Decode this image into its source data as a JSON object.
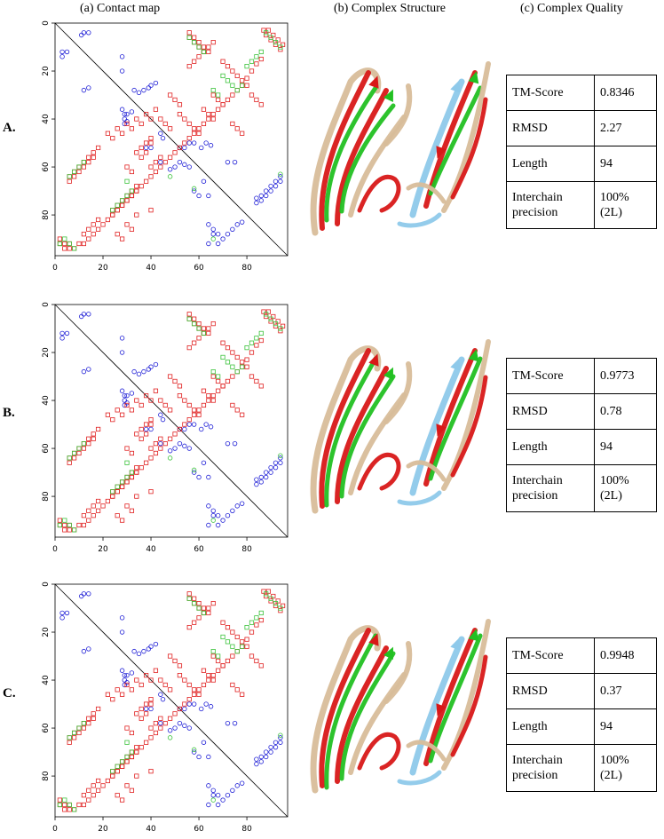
{
  "columns": {
    "a": "(a)  Contact map",
    "b": "(b) Complex Structure",
    "c": "(c) Complex Quality"
  },
  "rows": [
    {
      "label": "A.",
      "metrics": [
        {
          "name": "TM-Score",
          "value": "0.8346"
        },
        {
          "name": "RMSD",
          "value": "2.27"
        },
        {
          "name": "Length",
          "value": "94"
        },
        {
          "name": "Interchain precision",
          "value": "100% (2L)"
        }
      ]
    },
    {
      "label": "B.",
      "metrics": [
        {
          "name": "TM-Score",
          "value": "0.9773"
        },
        {
          "name": "RMSD",
          "value": "0.78"
        },
        {
          "name": "Length",
          "value": "94"
        },
        {
          "name": "Interchain precision",
          "value": "100% (2L)"
        }
      ]
    },
    {
      "label": "C.",
      "metrics": [
        {
          "name": "TM-Score",
          "value": "0.9948"
        },
        {
          "name": "RMSD",
          "value": "0.37"
        },
        {
          "name": "Length",
          "value": "94"
        },
        {
          "name": "Interchain precision",
          "value": "100% (2L)"
        }
      ]
    }
  ],
  "colors": {
    "intrachain": "#1f1fd6",
    "interchain_true": "#e02020",
    "interchain_pred": "#3cc33c",
    "struct_red": "#d81818",
    "struct_green": "#22c022",
    "struct_tan": "#d8bd9a",
    "struct_blue": "#8ec9ea"
  },
  "chart_data": [
    {
      "type": "scatter",
      "panel": "A",
      "xlim": [
        0,
        97
      ],
      "ylim": [
        97,
        0
      ],
      "x_ticks": [
        0,
        20,
        40,
        60,
        80
      ],
      "y_ticks": [
        0,
        20,
        40,
        60,
        80
      ],
      "upper_circles": [
        [
          12,
          4
        ],
        [
          14,
          4
        ],
        [
          11,
          5
        ],
        [
          3,
          14
        ],
        [
          5,
          12
        ],
        [
          3,
          12
        ],
        [
          12,
          28
        ],
        [
          14,
          27
        ],
        [
          28,
          14
        ],
        [
          28,
          20
        ],
        [
          33,
          28
        ],
        [
          35,
          29
        ],
        [
          37,
          28
        ],
        [
          39,
          27
        ],
        [
          40,
          26
        ],
        [
          42,
          25
        ],
        [
          29,
          38
        ],
        [
          29,
          40
        ],
        [
          29,
          42
        ],
        [
          28,
          36
        ],
        [
          30,
          38
        ],
        [
          30,
          41
        ],
        [
          32,
          37
        ],
        [
          44,
          46
        ],
        [
          45,
          48
        ],
        [
          52,
          52
        ],
        [
          54,
          52
        ],
        [
          56,
          50
        ],
        [
          58,
          50
        ],
        [
          61,
          52
        ],
        [
          63,
          50
        ],
        [
          65,
          51
        ],
        [
          48,
          61
        ],
        [
          50,
          60
        ],
        [
          52,
          58
        ],
        [
          54,
          59
        ],
        [
          56,
          60
        ],
        [
          38,
          52
        ],
        [
          40,
          52
        ],
        [
          44,
          58
        ],
        [
          72,
          58
        ],
        [
          75,
          58
        ],
        [
          58,
          70
        ],
        [
          60,
          72
        ],
        [
          64,
          84
        ],
        [
          66,
          86
        ],
        [
          68,
          88
        ],
        [
          70,
          90
        ],
        [
          72,
          88
        ],
        [
          74,
          86
        ],
        [
          76,
          84
        ],
        [
          78,
          83
        ],
        [
          62,
          66
        ],
        [
          64,
          72
        ],
        [
          66,
          88
        ],
        [
          68,
          92
        ],
        [
          64,
          92
        ],
        [
          84,
          73
        ],
        [
          86,
          72
        ],
        [
          88,
          70
        ],
        [
          90,
          68
        ],
        [
          92,
          66
        ],
        [
          94,
          64
        ],
        [
          84,
          75
        ],
        [
          86,
          74
        ],
        [
          88,
          72
        ],
        [
          90,
          70
        ],
        [
          92,
          68
        ],
        [
          94,
          66
        ]
      ],
      "upper_green_circles": [
        [
          48,
          64
        ],
        [
          94,
          63
        ],
        [
          66,
          90
        ],
        [
          58,
          69
        ]
      ],
      "upper_squares": [
        [
          56,
          4
        ],
        [
          58,
          6
        ],
        [
          60,
          8
        ],
        [
          62,
          10
        ],
        [
          64,
          12
        ],
        [
          56,
          6
        ],
        [
          58,
          8
        ],
        [
          60,
          10
        ],
        [
          62,
          12
        ],
        [
          56,
          18
        ],
        [
          58,
          16
        ],
        [
          60,
          14
        ],
        [
          62,
          12
        ],
        [
          64,
          10
        ],
        [
          66,
          8
        ],
        [
          87,
          3
        ],
        [
          88,
          5
        ],
        [
          90,
          7
        ],
        [
          92,
          9
        ],
        [
          94,
          11
        ],
        [
          89,
          3
        ],
        [
          91,
          5
        ],
        [
          93,
          7
        ],
        [
          95,
          9
        ],
        [
          86,
          15
        ],
        [
          84,
          17
        ],
        [
          82,
          20
        ],
        [
          80,
          23
        ],
        [
          78,
          26
        ],
        [
          76,
          28
        ],
        [
          74,
          30
        ],
        [
          72,
          32
        ],
        [
          70,
          34
        ],
        [
          68,
          36
        ],
        [
          66,
          38
        ],
        [
          64,
          40
        ],
        [
          62,
          42
        ],
        [
          60,
          44
        ],
        [
          58,
          46
        ],
        [
          56,
          48
        ],
        [
          54,
          50
        ],
        [
          52,
          52
        ],
        [
          50,
          54
        ],
        [
          48,
          56
        ],
        [
          46,
          58
        ],
        [
          44,
          60
        ],
        [
          42,
          62
        ],
        [
          40,
          64
        ],
        [
          38,
          66
        ],
        [
          36,
          68
        ],
        [
          34,
          70
        ],
        [
          32,
          72
        ],
        [
          30,
          74
        ],
        [
          28,
          76
        ],
        [
          26,
          78
        ],
        [
          24,
          80
        ],
        [
          22,
          82
        ],
        [
          20,
          84
        ],
        [
          18,
          86
        ],
        [
          16,
          88
        ],
        [
          14,
          90
        ],
        [
          12,
          92
        ],
        [
          70,
          16
        ],
        [
          72,
          18
        ],
        [
          74,
          20
        ],
        [
          76,
          22
        ],
        [
          78,
          24
        ],
        [
          80,
          26
        ],
        [
          66,
          30
        ],
        [
          68,
          32
        ],
        [
          70,
          34
        ],
        [
          82,
          30
        ],
        [
          84,
          32
        ],
        [
          86,
          34
        ],
        [
          74,
          42
        ],
        [
          76,
          44
        ],
        [
          78,
          46
        ],
        [
          62,
          36
        ],
        [
          64,
          38
        ],
        [
          66,
          40
        ],
        [
          52,
          38
        ],
        [
          54,
          40
        ],
        [
          56,
          42
        ],
        [
          58,
          44
        ],
        [
          60,
          46
        ],
        [
          48,
          30
        ],
        [
          50,
          32
        ],
        [
          52,
          34
        ],
        [
          44,
          40
        ],
        [
          46,
          42
        ],
        [
          48,
          44
        ],
        [
          40,
          48
        ],
        [
          38,
          50
        ],
        [
          36,
          52
        ],
        [
          34,
          54
        ]
      ],
      "upper_green_squares": [
        [
          56,
          6
        ],
        [
          58,
          8
        ],
        [
          60,
          10
        ],
        [
          62,
          12
        ],
        [
          88,
          4
        ],
        [
          90,
          6
        ],
        [
          92,
          8
        ],
        [
          94,
          10
        ],
        [
          70,
          22
        ],
        [
          72,
          24
        ],
        [
          74,
          26
        ],
        [
          66,
          28
        ],
        [
          68,
          30
        ],
        [
          80,
          18
        ],
        [
          82,
          16
        ],
        [
          84,
          14
        ],
        [
          86,
          12
        ],
        [
          76,
          28
        ],
        [
          78,
          26
        ]
      ],
      "lower_squares": [
        [
          6,
          64
        ],
        [
          8,
          62
        ],
        [
          10,
          60
        ],
        [
          12,
          58
        ],
        [
          14,
          56
        ],
        [
          16,
          54
        ],
        [
          18,
          52
        ],
        [
          6,
          66
        ],
        [
          8,
          64
        ],
        [
          10,
          62
        ],
        [
          12,
          60
        ],
        [
          14,
          58
        ],
        [
          16,
          56
        ],
        [
          24,
          78
        ],
        [
          26,
          76
        ],
        [
          28,
          74
        ],
        [
          30,
          72
        ],
        [
          32,
          70
        ],
        [
          34,
          68
        ],
        [
          24,
          80
        ],
        [
          26,
          78
        ],
        [
          28,
          76
        ],
        [
          30,
          74
        ],
        [
          32,
          72
        ],
        [
          34,
          70
        ],
        [
          12,
          88
        ],
        [
          14,
          86
        ],
        [
          16,
          84
        ],
        [
          18,
          82
        ],
        [
          10,
          92
        ],
        [
          2,
          92
        ],
        [
          4,
          94
        ],
        [
          6,
          92
        ],
        [
          8,
          94
        ],
        [
          2,
          90
        ],
        [
          4,
          92
        ],
        [
          6,
          94
        ],
        [
          22,
          46
        ],
        [
          24,
          48
        ],
        [
          26,
          44
        ],
        [
          28,
          46
        ],
        [
          30,
          42
        ],
        [
          32,
          44
        ],
        [
          34,
          40
        ],
        [
          36,
          42
        ],
        [
          38,
          38
        ],
        [
          40,
          40
        ],
        [
          42,
          36
        ],
        [
          36,
          56
        ],
        [
          38,
          54
        ],
        [
          40,
          50
        ],
        [
          30,
          60
        ],
        [
          32,
          62
        ],
        [
          40,
          60
        ],
        [
          42,
          58
        ],
        [
          44,
          56
        ],
        [
          30,
          84
        ],
        [
          32,
          86
        ],
        [
          34,
          80
        ],
        [
          40,
          78
        ],
        [
          28,
          90
        ],
        [
          26,
          88
        ]
      ],
      "lower_green_squares": [
        [
          6,
          64
        ],
        [
          8,
          62
        ],
        [
          10,
          60
        ],
        [
          12,
          58
        ],
        [
          24,
          78
        ],
        [
          26,
          76
        ],
        [
          28,
          74
        ],
        [
          30,
          72
        ],
        [
          2,
          92
        ],
        [
          4,
          90
        ],
        [
          6,
          92
        ],
        [
          8,
          94
        ],
        [
          30,
          66
        ],
        [
          32,
          70
        ]
      ]
    },
    {
      "type": "scatter",
      "panel": "B",
      "xlim": [
        0,
        97
      ],
      "ylim": [
        97,
        0
      ],
      "x_ticks": [
        0,
        20,
        40,
        60,
        80
      ],
      "y_ticks": [
        0,
        20,
        40,
        60,
        80
      ]
    },
    {
      "type": "scatter",
      "panel": "C",
      "xlim": [
        0,
        97
      ],
      "ylim": [
        97,
        0
      ],
      "x_ticks": [
        0,
        20,
        40,
        60,
        80
      ],
      "y_ticks": [
        0,
        20,
        40,
        60,
        80
      ]
    }
  ]
}
